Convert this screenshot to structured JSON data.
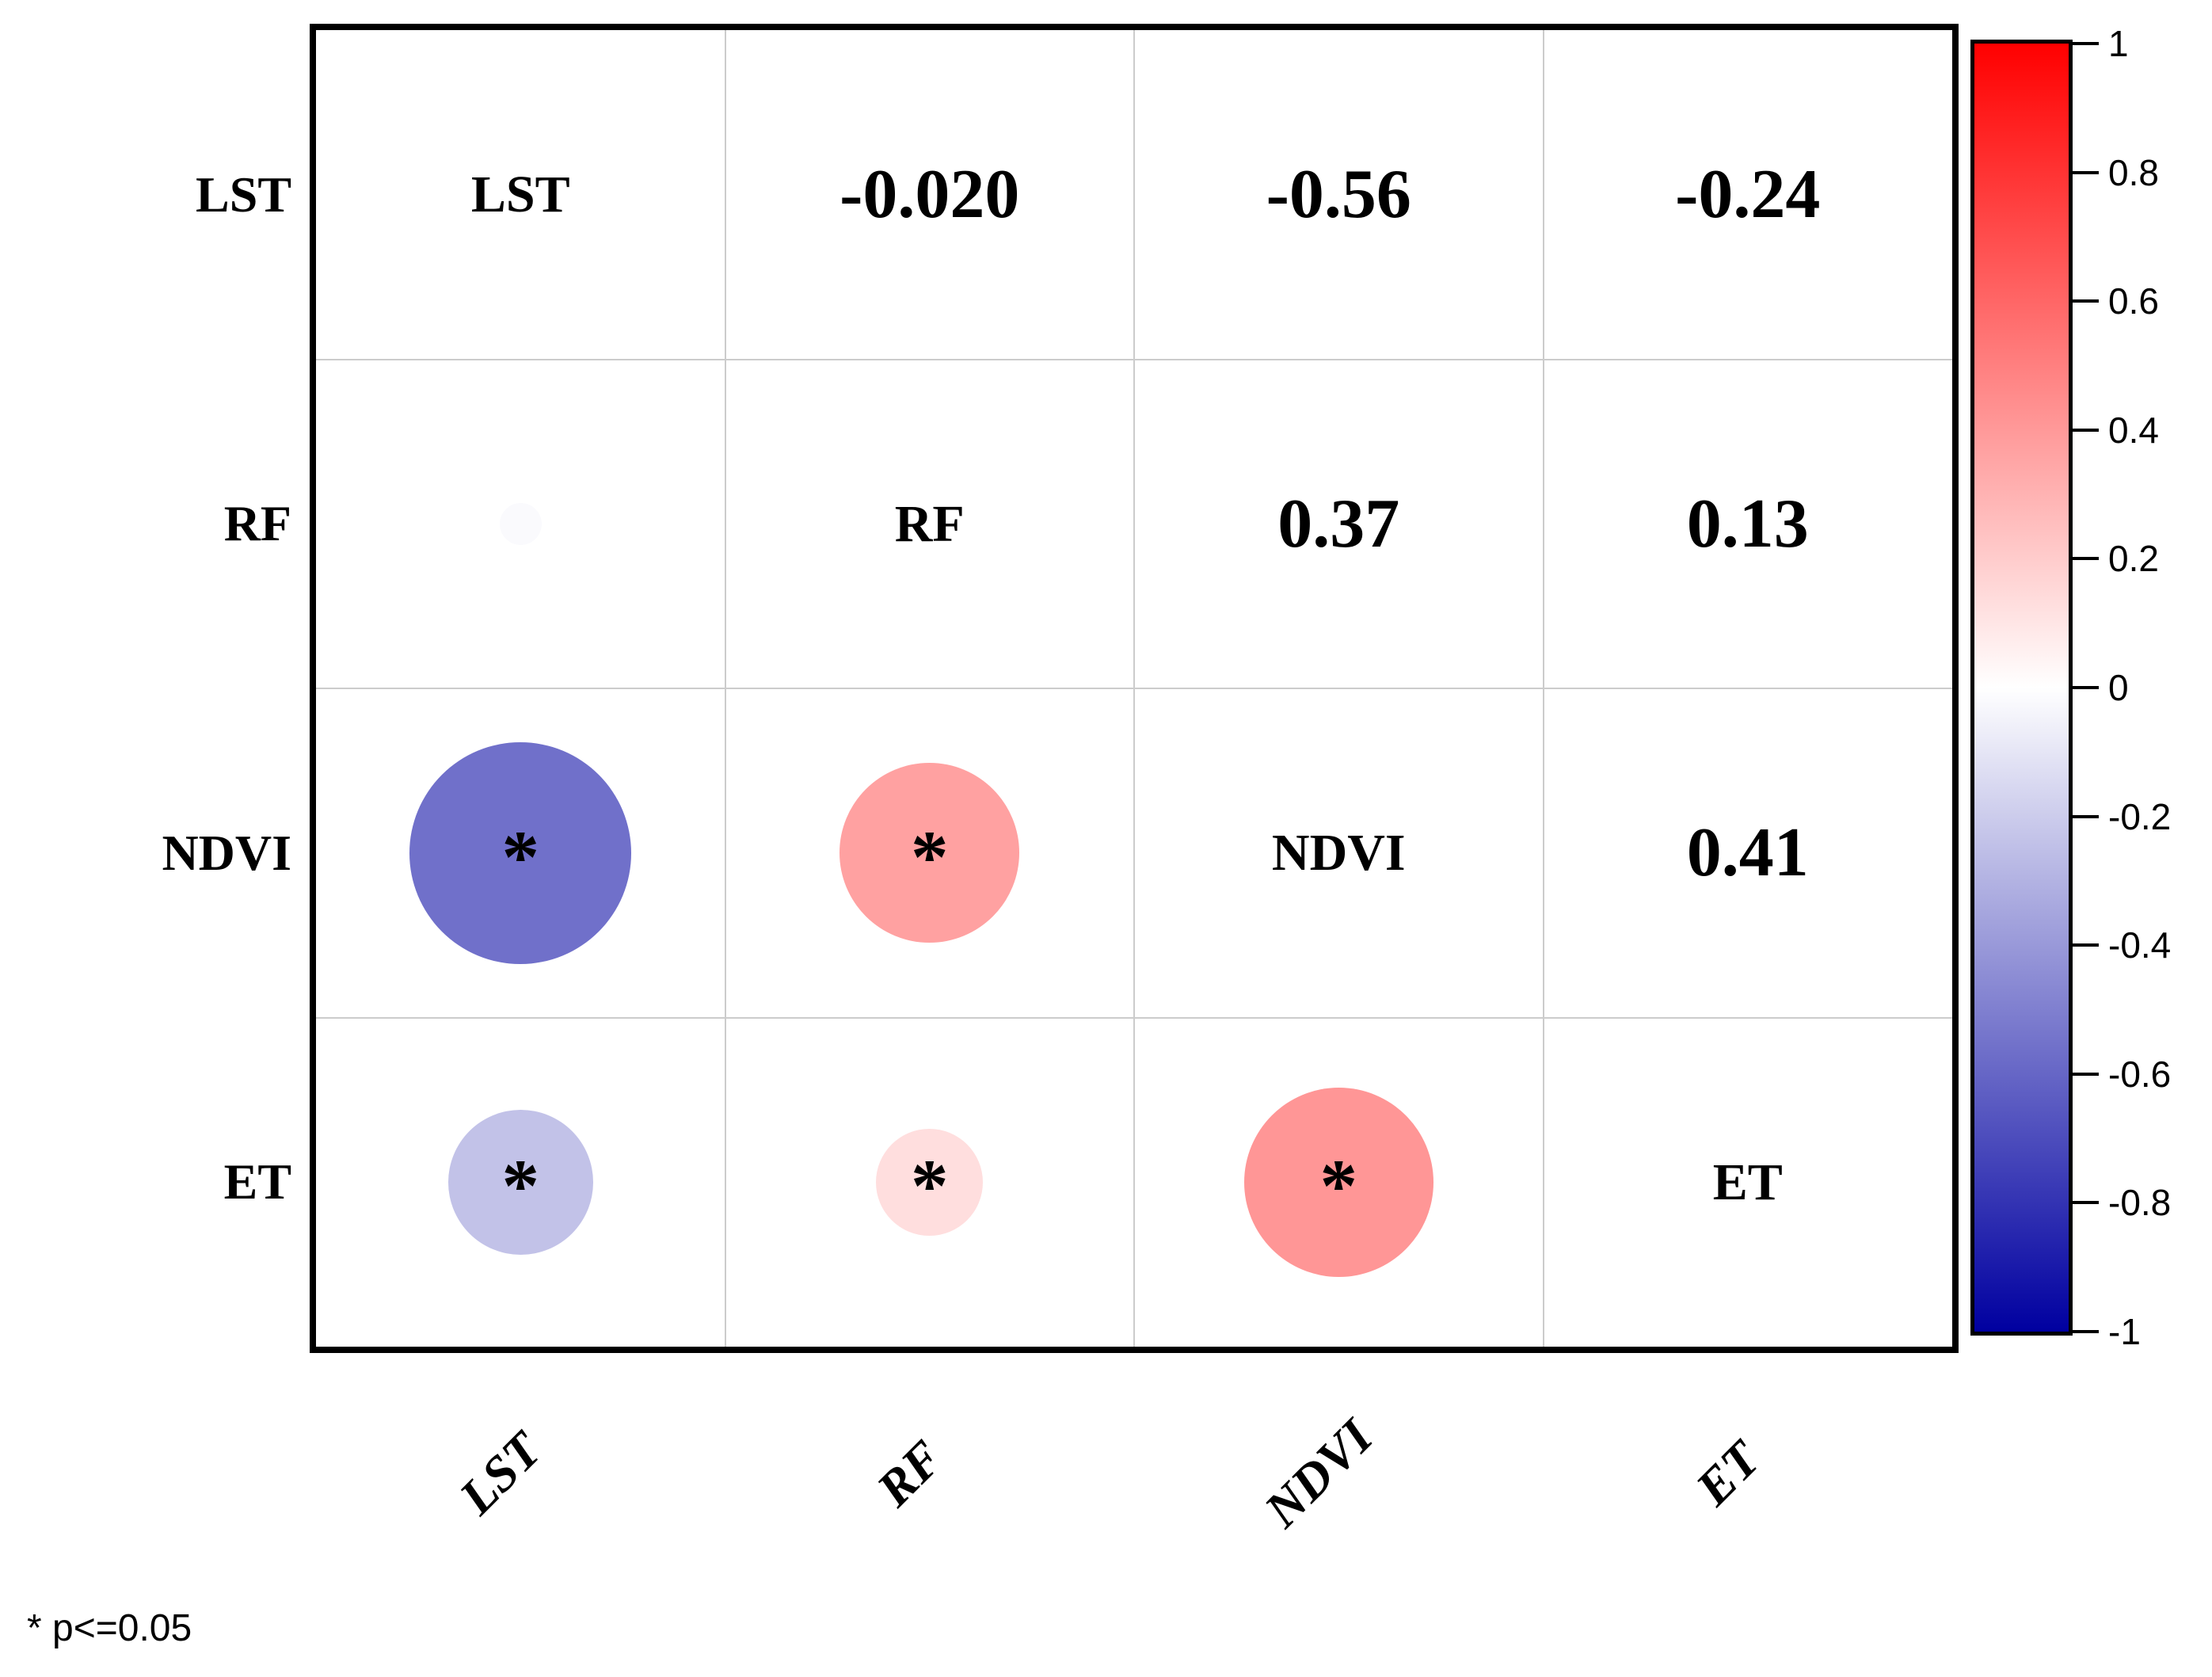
{
  "chart_data": {
    "type": "correlation-matrix",
    "description": "corrplot-style mixed correlation matrix: upper triangle numeric coefficients, diagonal variable names, lower triangle circles sized/colored by coefficient with significance stars",
    "variables": [
      "LST",
      "RF",
      "NDVI",
      "ET"
    ],
    "matrix": [
      [
        1.0,
        -0.02,
        -0.56,
        -0.24
      ],
      [
        -0.02,
        1.0,
        0.37,
        0.13
      ],
      [
        -0.56,
        0.37,
        1.0,
        0.41
      ],
      [
        -0.24,
        0.13,
        0.41,
        1.0
      ]
    ],
    "upper_triangle_values": [
      {
        "row": "LST",
        "col": "RF",
        "label": "-0.020",
        "value": -0.02
      },
      {
        "row": "LST",
        "col": "NDVI",
        "label": "-0.56",
        "value": -0.56
      },
      {
        "row": "LST",
        "col": "ET",
        "label": "-0.24",
        "value": -0.24
      },
      {
        "row": "RF",
        "col": "NDVI",
        "label": "0.37",
        "value": 0.37
      },
      {
        "row": "RF",
        "col": "ET",
        "label": "0.13",
        "value": 0.13
      },
      {
        "row": "NDVI",
        "col": "ET",
        "label": "0.41",
        "value": 0.41
      }
    ],
    "lower_triangle_circles": [
      {
        "row": "RF",
        "col": "LST",
        "value": -0.02,
        "significant": false
      },
      {
        "row": "NDVI",
        "col": "LST",
        "value": -0.56,
        "significant": true
      },
      {
        "row": "NDVI",
        "col": "RF",
        "value": 0.37,
        "significant": true
      },
      {
        "row": "ET",
        "col": "LST",
        "value": -0.24,
        "significant": true
      },
      {
        "row": "ET",
        "col": "RF",
        "value": 0.13,
        "significant": true
      },
      {
        "row": "ET",
        "col": "NDVI",
        "value": 0.41,
        "significant": true
      }
    ],
    "significance_marker": "*",
    "significance_note": "* p<=0.05",
    "colorbar": {
      "range": [
        -1,
        1
      ],
      "tick_labels": [
        "1",
        "0.8",
        "0.6",
        "0.4",
        "0.2",
        "0",
        "-0.2",
        "-0.4",
        "-0.6",
        "-0.8",
        "-1"
      ],
      "top_color": "#FF0000",
      "mid_color": "#FFFFFF",
      "bottom_color": "#0000A0"
    },
    "grid": true,
    "legend_position": "right"
  },
  "colors": {
    "positive_extreme": "#FF0000",
    "negative_extreme": "#0000A0",
    "gridline": "#CCCCCC",
    "border": "#000000",
    "background": "#FFFFFF"
  }
}
